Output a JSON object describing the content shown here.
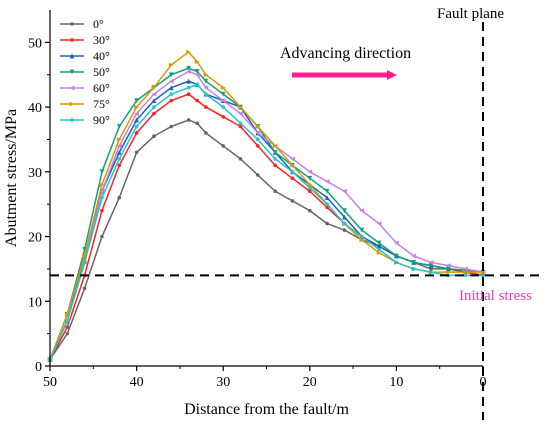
{
  "chart_data": {
    "type": "line",
    "title": "",
    "xlabel": "Distance from the fault/m",
    "ylabel": "Abutment stress/MPa",
    "xlim": [
      50,
      0
    ],
    "ylim": [
      0,
      55
    ],
    "x_ticks": [
      50,
      40,
      30,
      20,
      10,
      0
    ],
    "y_ticks": [
      0,
      10,
      20,
      30,
      40,
      50
    ],
    "legend_position": "top-left",
    "grid": false,
    "series": [
      {
        "name": "0°",
        "color": "#666666",
        "marker": "circle",
        "x": [
          50,
          48,
          46,
          44,
          42,
          40,
          38,
          36,
          34,
          33,
          32,
          30,
          28,
          26,
          24,
          22,
          20,
          18,
          16,
          14,
          12,
          10,
          8,
          6,
          4,
          2,
          0
        ],
        "y": [
          1,
          5,
          12,
          20,
          26,
          33,
          35.5,
          37,
          38,
          37.5,
          36,
          34,
          32,
          29.5,
          27,
          25.5,
          24,
          22,
          21,
          19.5,
          18.5,
          17,
          16,
          15,
          15,
          14.5,
          14
        ]
      },
      {
        "name": "30°",
        "color": "#ff2020",
        "marker": "circle",
        "x": [
          50,
          48,
          46,
          44,
          42,
          40,
          38,
          36,
          34,
          33,
          32,
          30,
          28,
          26,
          24,
          22,
          20,
          18,
          16,
          14,
          12,
          10,
          8,
          6,
          4,
          2,
          0
        ],
        "y": [
          1,
          6,
          14,
          24,
          31,
          36,
          39,
          41,
          42,
          41,
          40,
          38.5,
          37,
          34,
          31,
          29,
          27,
          24.5,
          22,
          20,
          18.5,
          17,
          16,
          15.5,
          15,
          14.5,
          14
        ]
      },
      {
        "name": "40°",
        "color": "#1f5fbf",
        "marker": "triangle-up",
        "x": [
          50,
          48,
          46,
          44,
          42,
          40,
          38,
          36,
          34,
          33,
          32,
          30,
          28,
          26,
          24,
          22,
          20,
          18,
          16,
          14,
          12,
          10,
          8,
          6,
          4,
          2,
          0
        ],
        "y": [
          1,
          7,
          17,
          27,
          33,
          38,
          41,
          43,
          44,
          43.5,
          42,
          41,
          40,
          36,
          33,
          30,
          28,
          26,
          23,
          20,
          18.5,
          17,
          16,
          15.5,
          15,
          14.8,
          14.5
        ]
      },
      {
        "name": "50°",
        "color": "#12a079",
        "marker": "triangle-down",
        "x": [
          50,
          48,
          46,
          44,
          42,
          40,
          38,
          36,
          34,
          33,
          32,
          30,
          28,
          26,
          24,
          22,
          20,
          18,
          16,
          14,
          12,
          10,
          8,
          6,
          4,
          2,
          0
        ],
        "y": [
          1,
          8,
          18,
          30,
          37,
          41,
          43,
          45,
          46,
          45.5,
          44,
          42,
          40,
          37,
          33,
          31,
          29,
          27,
          24,
          21,
          19,
          17,
          16,
          15.5,
          15,
          14.8,
          14.5
        ]
      },
      {
        "name": "60°",
        "color": "#c77fe8",
        "marker": "triangle-left",
        "x": [
          50,
          48,
          46,
          44,
          42,
          40,
          38,
          36,
          34,
          33,
          32,
          30,
          28,
          26,
          24,
          22,
          20,
          18,
          16,
          14,
          12,
          10,
          8,
          6,
          4,
          2,
          0
        ],
        "y": [
          1,
          7,
          16,
          27,
          34,
          39,
          42,
          44,
          45.5,
          45,
          43,
          41,
          39,
          36,
          34,
          32,
          30,
          28.5,
          27,
          24,
          22,
          19,
          17,
          16,
          15.5,
          15,
          14.5
        ]
      },
      {
        "name": "75°",
        "color": "#d99a00",
        "marker": "triangle-right",
        "x": [
          50,
          48,
          46,
          44,
          42,
          40,
          38,
          36,
          34,
          33,
          32,
          30,
          28,
          26,
          24,
          22,
          20,
          18,
          16,
          14,
          12,
          10,
          8,
          6,
          4,
          2,
          0
        ],
        "y": [
          1,
          8,
          17,
          28,
          35,
          40,
          43,
          46.5,
          48.5,
          47,
          45,
          43,
          40,
          37,
          34,
          31,
          28,
          25,
          22,
          19.5,
          17.5,
          16,
          15,
          14.5,
          14.5,
          14.5,
          14.5
        ]
      },
      {
        "name": "90°",
        "color": "#20c7cc",
        "marker": "circle",
        "x": [
          50,
          48,
          46,
          44,
          42,
          40,
          38,
          36,
          34,
          33,
          32,
          30,
          28,
          26,
          24,
          22,
          20,
          18,
          16,
          14,
          12,
          10,
          8,
          6,
          4,
          2,
          0
        ],
        "y": [
          1,
          7,
          16,
          26,
          32,
          37,
          40,
          42,
          43,
          43.5,
          42,
          40,
          37.5,
          35,
          32,
          30,
          27.5,
          25,
          22,
          20,
          18,
          16,
          15,
          14.5,
          14,
          14,
          14
        ]
      }
    ],
    "annotations": {
      "fault_plane": "Fault plane",
      "direction": "Advancing direction",
      "initial_stress": "Initial stress",
      "initial_stress_value": 14,
      "fault_x": 0,
      "direction_color": "#ff1e8c",
      "initial_stress_color": "#e040b0"
    }
  }
}
